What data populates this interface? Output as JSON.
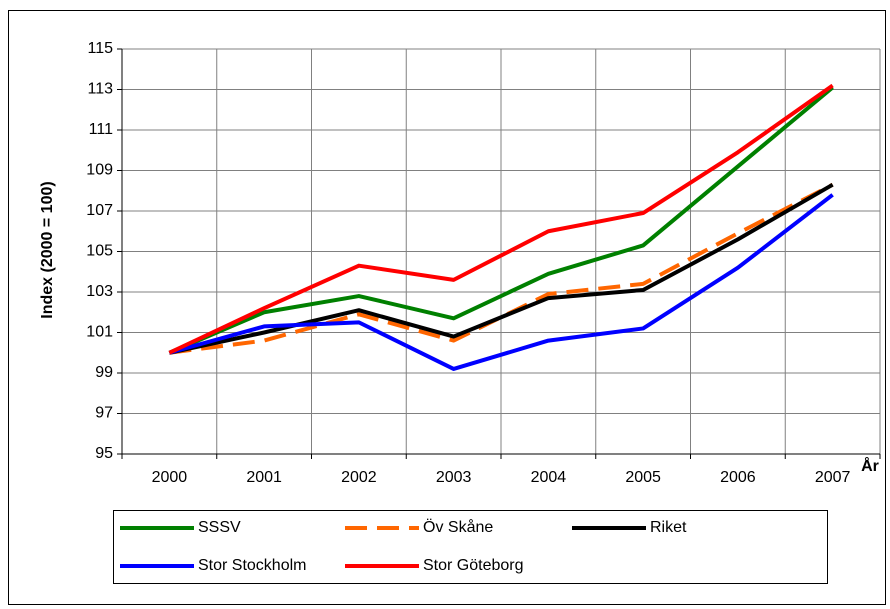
{
  "chart_data": {
    "type": "line",
    "y_label": "Index (2000 = 100)",
    "x_label": "År",
    "categories": [
      "2000",
      "2001",
      "2002",
      "2003",
      "2004",
      "2005",
      "2006",
      "2007"
    ],
    "ylim": [
      95,
      115
    ],
    "yticks": [
      95,
      97,
      99,
      101,
      103,
      105,
      107,
      109,
      111,
      113,
      115
    ],
    "grid": true,
    "legend": "bottom",
    "series": [
      {
        "name": "SSSV",
        "color": "#008000",
        "values": [
          100,
          102.0,
          102.8,
          101.7,
          103.9,
          105.3,
          109.2,
          113.1
        ]
      },
      {
        "name": "Öv Skåne",
        "color": "#ff6600",
        "dashed": true,
        "values": [
          100,
          100.6,
          101.9,
          100.6,
          102.9,
          103.4,
          105.9,
          108.3
        ]
      },
      {
        "name": "Riket",
        "color": "#000000",
        "values": [
          100,
          101.0,
          102.1,
          100.8,
          102.7,
          103.1,
          105.6,
          108.3
        ]
      },
      {
        "name": "Stor Stockholm",
        "color": "#0000ff",
        "values": [
          100,
          101.3,
          101.5,
          99.2,
          100.6,
          101.2,
          104.2,
          107.8
        ]
      },
      {
        "name": "Stor Göteborg",
        "color": "#ff0000",
        "values": [
          100,
          102.2,
          104.3,
          103.6,
          106.0,
          106.9,
          109.9,
          113.2
        ]
      }
    ]
  }
}
